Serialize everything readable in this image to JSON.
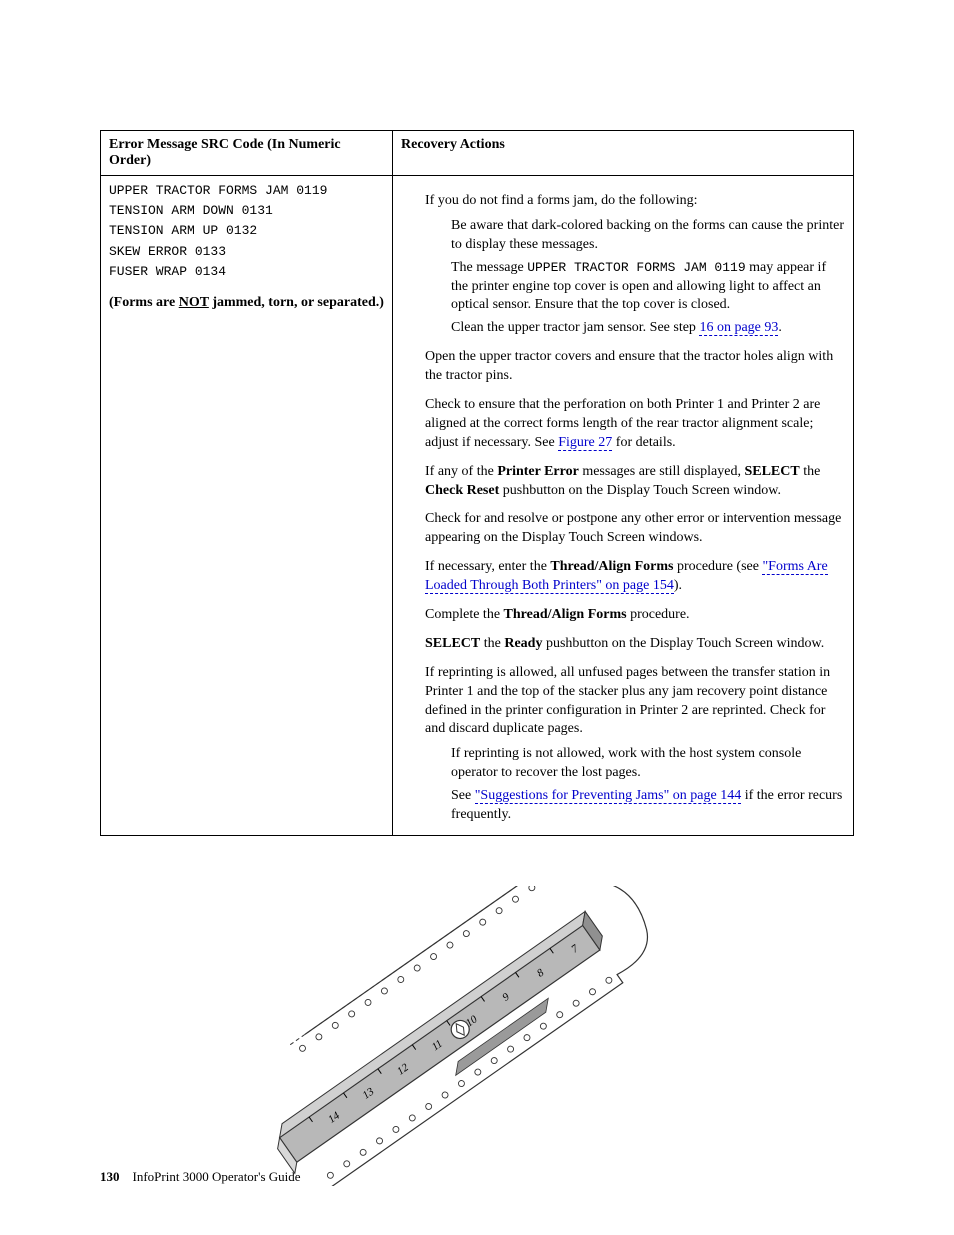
{
  "table": {
    "header_left": "Error Message SRC Code (In Numeric Order)",
    "header_right": "Recovery Actions",
    "left": {
      "code1": "UPPER TRACTOR FORMS JAM  0119",
      "code2": "TENSION ARM DOWN 0131",
      "code3": "TENSION ARM UP 0132",
      "code4": "SKEW ERROR 0133",
      "code5": "FUSER WRAP 0134",
      "note_prefix": "(Forms are ",
      "note_not": "NOT",
      "note_suffix": " jammed, torn, or separated.)"
    },
    "right": {
      "p1": "If you do not find a forms jam, do the following:",
      "p1a": "Be aware that dark-colored backing on the forms can cause the printer to display these messages.",
      "p1b_1": "The message ",
      "p1b_mono": "UPPER TRACTOR FORMS JAM 0119",
      "p1b_2": " may appear if the printer engine top cover is open and allowing light to affect an optical sensor. Ensure that the top cover is closed.",
      "p1c_1": "Clean the upper tractor jam sensor. See step ",
      "p1c_link": "16 on page 93",
      "p1c_2": ".",
      "p2": "Open the upper tractor covers and ensure that the tractor holes align with the tractor pins.",
      "p3_1": "Check to ensure that the perforation on both Printer 1 and Printer 2 are aligned at the correct forms length of the rear tractor alignment scale; adjust if necessary. See ",
      "p3_link": "Figure 27",
      "p3_2": " for details.",
      "p4_1": "If any of the ",
      "p4_b1": "Printer Error",
      "p4_2": " messages are still displayed, ",
      "p4_b2": "SELECT",
      "p4_3": " the ",
      "p4_b3": "Check Reset",
      "p4_4": " pushbutton on the Display Touch Screen window.",
      "p5": "Check for and resolve or postpone any other error or intervention message appearing on the Display Touch Screen windows.",
      "p6_1": "If necessary, enter the ",
      "p6_b": "Thread/Align Forms",
      "p6_2": " procedure (see ",
      "p6_link": "\"Forms Are Loaded Through Both Printers\" on page 154",
      "p6_3": ").",
      "p7_1": "Complete the ",
      "p7_b": "Thread/Align Forms",
      "p7_2": " procedure.",
      "p8_b1": "SELECT",
      "p8_1": " the ",
      "p8_b2": "Ready",
      "p8_2": " pushbutton on the Display Touch Screen window.",
      "p9": "If reprinting is allowed, all unfused pages between the transfer station in Printer 1 and the top of the stacker plus any jam recovery point distance defined in the printer configuration in Printer 2 are reprinted. Check for and discard duplicate pages.",
      "p9a": "If reprinting is not allowed, work with the host system console operator to recover the lost pages.",
      "p9b_1": "See ",
      "p9b_link": "\"Suggestions for Preventing Jams\" on page 144",
      "p9b_2": " if the error recurs frequently."
    }
  },
  "figure": {
    "scale_numbers": [
      "7",
      "8",
      "9",
      "10",
      "11",
      "12",
      "13",
      "14"
    ],
    "scale_fill": "#b8b8b8",
    "stroke": "#333333",
    "dash": "4,3"
  },
  "footer": {
    "page": "130",
    "title": "InfoPrint 3000 Operator's Guide"
  },
  "colors": {
    "link": "#0000cc",
    "text": "#000000",
    "bg": "#ffffff"
  }
}
